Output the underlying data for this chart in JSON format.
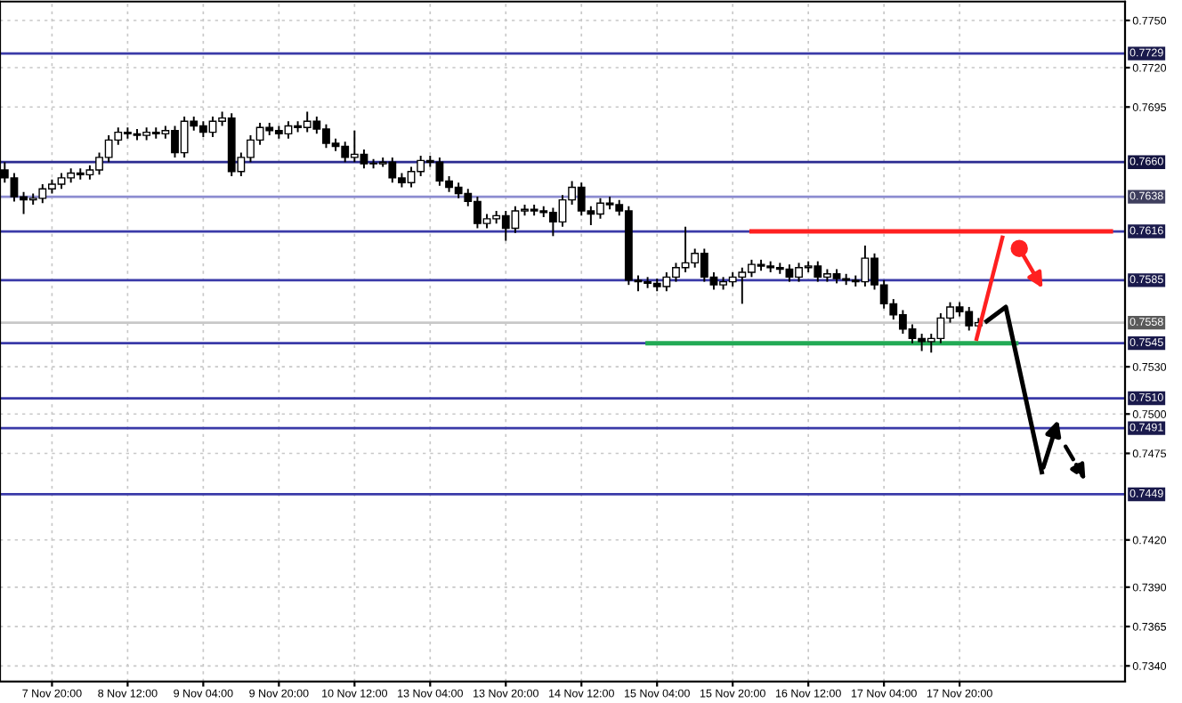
{
  "chart_data": {
    "type": "candlestick",
    "categories": [
      null,
      null,
      null,
      null,
      null,
      "7 Nov 20:00",
      null,
      null,
      null,
      null,
      null,
      null,
      null,
      "8 Nov 12:00",
      null,
      null,
      null,
      null,
      null,
      null,
      null,
      "9 Nov 04:00",
      null,
      null,
      null,
      null,
      null,
      null,
      null,
      "9 Nov 20:00",
      null,
      null,
      null,
      null,
      null,
      null,
      null,
      "10 Nov 12:00",
      null,
      null,
      null,
      null,
      null,
      null,
      null,
      "13 Nov 04:00",
      null,
      null,
      null,
      null,
      null,
      null,
      null,
      "13 Nov 20:00",
      null,
      null,
      null,
      null,
      null,
      null,
      null,
      "14 Nov 12:00",
      null,
      null,
      null,
      null,
      null,
      null,
      null,
      "15 Nov 04:00",
      null,
      null,
      null,
      null,
      null,
      null,
      null,
      "15 Nov 20:00",
      null,
      null,
      null,
      null,
      null,
      null,
      null,
      "16 Nov 12:00",
      null,
      null,
      null,
      null,
      null,
      null,
      null,
      "17 Nov 04:00",
      null,
      null,
      null,
      null,
      null,
      null,
      null,
      "17 Nov 20:00",
      null,
      null,
      null,
      null,
      null,
      null,
      null,
      null,
      null,
      null,
      null,
      null,
      null,
      null,
      null,
      null,
      null
    ],
    "ohlc": [
      [
        0.7655,
        0.766,
        0.7647,
        0.765
      ],
      [
        0.765,
        0.7653,
        0.7635,
        0.7638
      ],
      [
        0.7638,
        0.7641,
        0.7627,
        0.7636
      ],
      [
        0.7636,
        0.764,
        0.7633,
        0.7637
      ],
      [
        0.7637,
        0.7646,
        0.7634,
        0.7643
      ],
      [
        0.7643,
        0.7649,
        0.764,
        0.7646
      ],
      [
        0.7646,
        0.7653,
        0.7643,
        0.765
      ],
      [
        0.765,
        0.7656,
        0.7647,
        0.7653
      ],
      [
        0.7653,
        0.7656,
        0.7649,
        0.7652
      ],
      [
        0.7652,
        0.7658,
        0.7649,
        0.7655
      ],
      [
        0.7655,
        0.7666,
        0.7652,
        0.7663
      ],
      [
        0.7663,
        0.7677,
        0.766,
        0.7674
      ],
      [
        0.7674,
        0.7682,
        0.7671,
        0.7679
      ],
      [
        0.7679,
        0.7682,
        0.7675,
        0.7678
      ],
      [
        0.7678,
        0.7681,
        0.7674,
        0.7677
      ],
      [
        0.7677,
        0.7682,
        0.7674,
        0.7679
      ],
      [
        0.7679,
        0.7682,
        0.7675,
        0.7678
      ],
      [
        0.7678,
        0.7683,
        0.7675,
        0.768
      ],
      [
        0.768,
        0.7683,
        0.7663,
        0.7666
      ],
      [
        0.7666,
        0.7689,
        0.7663,
        0.7686
      ],
      [
        0.7686,
        0.7689,
        0.768,
        0.7683
      ],
      [
        0.7683,
        0.7686,
        0.7676,
        0.7679
      ],
      [
        0.7679,
        0.7689,
        0.7676,
        0.7686
      ],
      [
        0.7686,
        0.7692,
        0.7683,
        0.7688
      ],
      [
        0.7688,
        0.7691,
        0.7651,
        0.7654
      ],
      [
        0.7654,
        0.7666,
        0.7651,
        0.7663
      ],
      [
        0.7663,
        0.7677,
        0.766,
        0.7674
      ],
      [
        0.7674,
        0.7685,
        0.7671,
        0.7682
      ],
      [
        0.7682,
        0.7685,
        0.7677,
        0.768
      ],
      [
        0.768,
        0.7683,
        0.7675,
        0.7678
      ],
      [
        0.7678,
        0.7686,
        0.7675,
        0.7683
      ],
      [
        0.7683,
        0.7686,
        0.7679,
        0.7682
      ],
      [
        0.7682,
        0.7692,
        0.7679,
        0.7686
      ],
      [
        0.7686,
        0.7689,
        0.7678,
        0.7681
      ],
      [
        0.7681,
        0.7684,
        0.7669,
        0.7672
      ],
      [
        0.7672,
        0.7675,
        0.7667,
        0.767
      ],
      [
        0.767,
        0.7673,
        0.766,
        0.7663
      ],
      [
        0.7663,
        0.768,
        0.766,
        0.7665
      ],
      [
        0.7665,
        0.7668,
        0.7656,
        0.7659
      ],
      [
        0.7659,
        0.7662,
        0.7656,
        0.7659
      ],
      [
        0.7659,
        0.7663,
        0.7657,
        0.766
      ],
      [
        0.766,
        0.7663,
        0.7647,
        0.765
      ],
      [
        0.765,
        0.7653,
        0.7644,
        0.7647
      ],
      [
        0.7647,
        0.7657,
        0.7644,
        0.7654
      ],
      [
        0.7654,
        0.7664,
        0.7651,
        0.7661
      ],
      [
        0.7661,
        0.7664,
        0.7657,
        0.766
      ],
      [
        0.766,
        0.7663,
        0.7645,
        0.7648
      ],
      [
        0.7648,
        0.7651,
        0.7641,
        0.7644
      ],
      [
        0.7644,
        0.7647,
        0.7637,
        0.764
      ],
      [
        0.764,
        0.7643,
        0.7632,
        0.7635
      ],
      [
        0.7635,
        0.7638,
        0.7618,
        0.7621
      ],
      [
        0.7621,
        0.7627,
        0.7618,
        0.7624
      ],
      [
        0.7624,
        0.7629,
        0.7621,
        0.7626
      ],
      [
        0.7626,
        0.7629,
        0.761,
        0.7618
      ],
      [
        0.7618,
        0.7632,
        0.7615,
        0.7629
      ],
      [
        0.7629,
        0.7633,
        0.7626,
        0.763
      ],
      [
        0.763,
        0.7633,
        0.7626,
        0.7629
      ],
      [
        0.7629,
        0.7632,
        0.7625,
        0.7628
      ],
      [
        0.7628,
        0.7631,
        0.7613,
        0.7622
      ],
      [
        0.7622,
        0.7639,
        0.7619,
        0.7636
      ],
      [
        0.7636,
        0.7648,
        0.7633,
        0.7644
      ],
      [
        0.7644,
        0.7647,
        0.7626,
        0.7629
      ],
      [
        0.7629,
        0.7632,
        0.762,
        0.7627
      ],
      [
        0.7627,
        0.7637,
        0.7624,
        0.7634
      ],
      [
        0.7634,
        0.7638,
        0.763,
        0.7633
      ],
      [
        0.7633,
        0.7636,
        0.7626,
        0.7629
      ],
      [
        0.7629,
        0.7632,
        0.7582,
        0.7585
      ],
      [
        0.7585,
        0.7588,
        0.7578,
        0.7584
      ],
      [
        0.7584,
        0.7587,
        0.758,
        0.7583
      ],
      [
        0.7583,
        0.7586,
        0.7578,
        0.7581
      ],
      [
        0.7581,
        0.759,
        0.7578,
        0.7587
      ],
      [
        0.7587,
        0.7596,
        0.7584,
        0.7593
      ],
      [
        0.7593,
        0.7619,
        0.759,
        0.7596
      ],
      [
        0.7596,
        0.7605,
        0.7593,
        0.7602
      ],
      [
        0.7602,
        0.7605,
        0.7584,
        0.7587
      ],
      [
        0.7587,
        0.759,
        0.7579,
        0.7582
      ],
      [
        0.7582,
        0.7587,
        0.7579,
        0.7584
      ],
      [
        0.7584,
        0.759,
        0.7581,
        0.7587
      ],
      [
        0.7587,
        0.7593,
        0.757,
        0.759
      ],
      [
        0.759,
        0.7598,
        0.7587,
        0.7595
      ],
      [
        0.7595,
        0.7598,
        0.7591,
        0.7594
      ],
      [
        0.7594,
        0.7597,
        0.759,
        0.7593
      ],
      [
        0.7593,
        0.7596,
        0.7589,
        0.7592
      ],
      [
        0.7592,
        0.7595,
        0.7584,
        0.7587
      ],
      [
        0.7587,
        0.7596,
        0.7584,
        0.7593
      ],
      [
        0.7593,
        0.7597,
        0.759,
        0.7594
      ],
      [
        0.7594,
        0.7597,
        0.7584,
        0.7587
      ],
      [
        0.7587,
        0.7592,
        0.7584,
        0.7589
      ],
      [
        0.7589,
        0.7592,
        0.7583,
        0.7586
      ],
      [
        0.7586,
        0.7589,
        0.7582,
        0.7585
      ],
      [
        0.7585,
        0.7588,
        0.7581,
        0.7584
      ],
      [
        0.7584,
        0.7607,
        0.7581,
        0.7599
      ],
      [
        0.7599,
        0.7602,
        0.7579,
        0.7582
      ],
      [
        0.7582,
        0.7585,
        0.7567,
        0.757
      ],
      [
        0.757,
        0.7573,
        0.756,
        0.7563
      ],
      [
        0.7563,
        0.7566,
        0.7551,
        0.7554
      ],
      [
        0.7554,
        0.7557,
        0.7545,
        0.7548
      ],
      [
        0.7548,
        0.7551,
        0.754,
        0.7546
      ],
      [
        0.7546,
        0.7551,
        0.7539,
        0.7548
      ],
      [
        0.7548,
        0.7564,
        0.7545,
        0.7561
      ],
      [
        0.7561,
        0.7571,
        0.7558,
        0.7568
      ],
      [
        0.7568,
        0.7571,
        0.7562,
        0.7565
      ],
      [
        0.7565,
        0.7568,
        0.7553,
        0.7556
      ],
      [
        0.7556,
        0.7561,
        0.7553,
        0.7558
      ],
      null,
      null,
      null,
      null,
      null,
      null,
      null,
      null,
      null,
      null,
      null,
      null,
      null,
      null,
      null
    ],
    "series": [
      {
        "type": "line",
        "color": "#ff2020",
        "values": [
          null,
          null,
          null,
          null,
          null,
          null,
          null,
          null,
          null,
          null,
          null,
          null,
          null,
          null,
          null,
          null,
          null,
          null,
          null,
          null,
          null,
          null,
          null,
          null,
          null,
          null,
          null,
          null,
          null,
          null,
          null,
          null,
          null,
          null,
          null,
          null,
          null,
          null,
          null,
          null,
          null,
          null,
          null,
          null,
          null,
          null,
          null,
          null,
          null,
          null,
          null,
          null,
          null,
          null,
          null,
          null,
          null,
          null,
          null,
          null,
          null,
          null,
          null,
          null,
          null,
          null,
          null,
          null,
          null,
          null,
          null,
          null,
          null,
          null,
          null,
          null,
          null,
          null,
          null,
          0.7616,
          0.7616,
          0.7616,
          0.7616,
          0.7616,
          0.7616,
          0.7616,
          0.7616,
          0.7616,
          0.7616,
          0.7616,
          0.7616,
          0.7616,
          0.7616,
          0.7616,
          0.7616,
          0.7616,
          0.7616,
          0.7616,
          0.7616,
          0.7616,
          0.7616,
          0.7616,
          0.7616,
          0.7616,
          0.7616,
          0.7616,
          0.7616,
          0.7616,
          0.7616,
          0.7616,
          0.7616,
          0.7616,
          0.7616,
          0.7616,
          0.7616,
          0.7616,
          0.7616,
          0.7616,
          null
        ]
      },
      {
        "type": "line",
        "color": "#22aa55",
        "values": [
          null,
          null,
          null,
          null,
          null,
          null,
          null,
          null,
          null,
          null,
          null,
          null,
          null,
          null,
          null,
          null,
          null,
          null,
          null,
          null,
          null,
          null,
          null,
          null,
          null,
          null,
          null,
          null,
          null,
          null,
          null,
          null,
          null,
          null,
          null,
          null,
          null,
          null,
          null,
          null,
          null,
          null,
          null,
          null,
          null,
          null,
          null,
          null,
          null,
          null,
          null,
          null,
          null,
          null,
          null,
          null,
          null,
          null,
          null,
          null,
          null,
          null,
          null,
          null,
          null,
          null,
          null,
          null,
          0.7545,
          0.7545,
          0.7545,
          0.7545,
          0.7545,
          0.7545,
          0.7545,
          0.7545,
          0.7545,
          0.7545,
          0.7545,
          0.7545,
          0.7545,
          0.7545,
          0.7545,
          0.7545,
          0.7545,
          0.7545,
          0.7545,
          0.7545,
          0.7545,
          0.7545,
          0.7545,
          0.7545,
          0.7545,
          0.7545,
          0.7545,
          0.7545,
          0.7545,
          0.7545,
          0.7545,
          0.7545,
          0.7545,
          0.7545,
          0.7545,
          0.7545,
          0.7545,
          0.7545,
          0.7545,
          0.7545,
          null,
          null,
          null,
          null,
          null,
          null,
          null,
          null,
          null,
          null,
          null
        ]
      }
    ],
    "ylim": [
      0.733,
      0.7762
    ],
    "yticks": [
      {
        "value": 0.775,
        "label": "0.7750"
      },
      {
        "value": 0.772,
        "label": "0.7720"
      },
      {
        "value": 0.7695,
        "label": "0.7695"
      },
      {
        "value": 0.753,
        "label": "0.7530"
      },
      {
        "value": 0.75,
        "label": "0.7500"
      },
      {
        "value": 0.7475,
        "label": "0.7475"
      },
      {
        "value": 0.742,
        "label": "0.7420"
      },
      {
        "value": 0.739,
        "label": "0.7390"
      },
      {
        "value": 0.7365,
        "label": "0.7365"
      },
      {
        "value": 0.734,
        "label": "0.7340"
      }
    ],
    "ref_lines": [
      {
        "axis": "y",
        "value": 0.7729,
        "label": "0.7729",
        "color": "#3a3aa8"
      },
      {
        "axis": "y",
        "value": 0.766,
        "label": "0.7660",
        "color": "#2a2a90"
      },
      {
        "axis": "y",
        "value": 0.7638,
        "label": "0.7638",
        "color": "#8c8cd0"
      },
      {
        "axis": "y",
        "value": 0.7616,
        "label": "0.7616",
        "color": "#3a3aa8"
      },
      {
        "axis": "y",
        "value": 0.7585,
        "label": "0.7585",
        "color": "#3a3aa8"
      },
      {
        "axis": "y",
        "value": 0.7558,
        "label": "0.7558",
        "color": "#c8c8c8"
      },
      {
        "axis": "y",
        "value": 0.7545,
        "label": "0.7545",
        "color": "#3a3aa8"
      },
      {
        "axis": "y",
        "value": 0.751,
        "label": "0.7510",
        "color": "#3a3aa8"
      },
      {
        "axis": "y",
        "value": 0.7491,
        "label": "0.7491",
        "color": "#3a3aa8"
      },
      {
        "axis": "y",
        "value": 0.7449,
        "label": "0.7449",
        "color": "#3a3aa8"
      }
    ],
    "grid": true
  }
}
